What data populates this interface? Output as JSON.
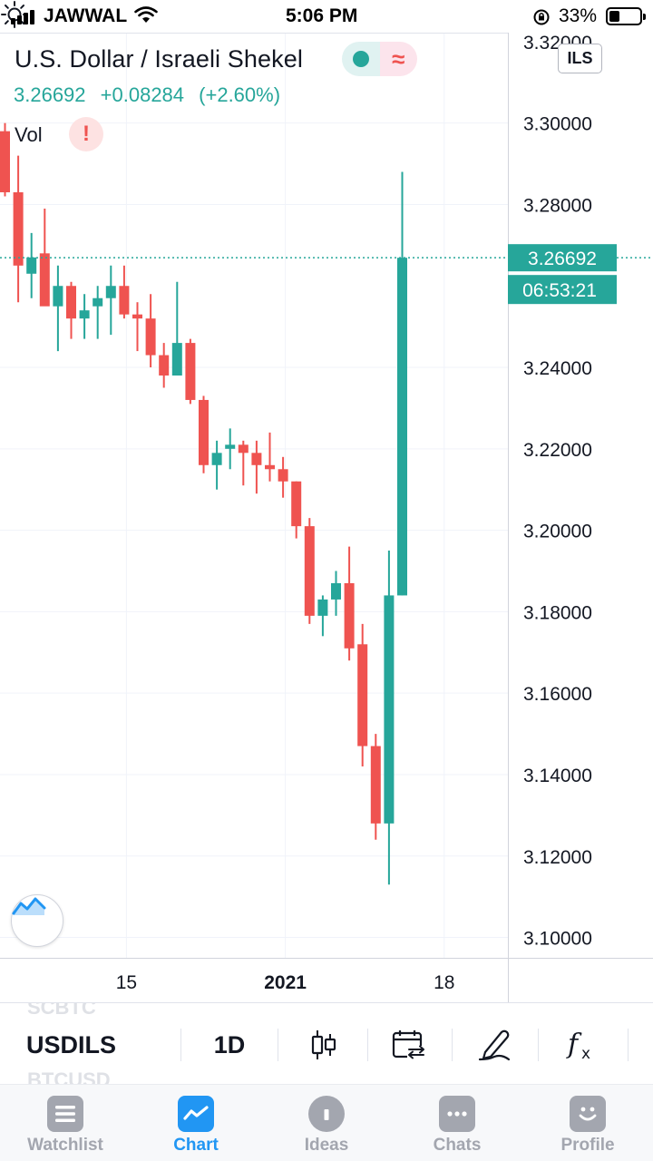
{
  "status_bar": {
    "carrier": "JAWWAL",
    "time": "5:06 PM",
    "battery": "33%",
    "signal_bars": 4,
    "battery_level": 0.33
  },
  "header": {
    "symbol_name": "U.S. Dollar / Israeli Shekel",
    "price": "3.26692",
    "change": "+0.08284",
    "change_percent": "(+2.60%)",
    "currency": "ILS",
    "vol_label": "Vol",
    "vol_warning": "!",
    "delayed_glyph": "≈"
  },
  "colors": {
    "up": "#26a69a",
    "down": "#ef5350",
    "accent": "#2196f3",
    "grid": "#f0f3fa",
    "axis_text": "#131722",
    "inactive": "#a3a6af"
  },
  "chart_data": {
    "type": "candlestick",
    "symbol": "USDILS",
    "interval": "1D",
    "ylim": [
      3.095,
      3.3222
    ],
    "y_ticks": [
      "3.30000",
      "3.28000",
      "3.24000",
      "3.22000",
      "3.20000",
      "3.18000",
      "3.16000",
      "3.14000",
      "3.12000",
      "3.10000"
    ],
    "y_ticks_values": [
      3.3,
      3.28,
      3.24,
      3.22,
      3.2,
      3.18,
      3.16,
      3.14,
      3.12,
      3.1
    ],
    "top_tick_partial": "3.32000",
    "x_ticks": [
      {
        "label": "15",
        "index": 9,
        "bold": false
      },
      {
        "label": "2021",
        "index": 21,
        "bold": true
      },
      {
        "label": "18",
        "index": 33,
        "bold": false
      }
    ],
    "last_price_label": "3.26692",
    "countdown_label": "06:53:21",
    "last_price": 3.26692,
    "candles": [
      {
        "o": 3.298,
        "h": 3.3,
        "l": 3.282,
        "c": 3.283
      },
      {
        "o": 3.283,
        "h": 3.292,
        "l": 3.256,
        "c": 3.265
      },
      {
        "o": 3.263,
        "h": 3.273,
        "l": 3.257,
        "c": 3.267
      },
      {
        "o": 3.268,
        "h": 3.279,
        "l": 3.256,
        "c": 3.255
      },
      {
        "o": 3.255,
        "h": 3.265,
        "l": 3.244,
        "c": 3.26
      },
      {
        "o": 3.26,
        "h": 3.261,
        "l": 3.247,
        "c": 3.252
      },
      {
        "o": 3.252,
        "h": 3.258,
        "l": 3.247,
        "c": 3.254
      },
      {
        "o": 3.255,
        "h": 3.26,
        "l": 3.247,
        "c": 3.257
      },
      {
        "o": 3.257,
        "h": 3.265,
        "l": 3.248,
        "c": 3.26
      },
      {
        "o": 3.26,
        "h": 3.265,
        "l": 3.252,
        "c": 3.253
      },
      {
        "o": 3.253,
        "h": 3.256,
        "l": 3.244,
        "c": 3.252
      },
      {
        "o": 3.252,
        "h": 3.258,
        "l": 3.24,
        "c": 3.243
      },
      {
        "o": 3.243,
        "h": 3.246,
        "l": 3.235,
        "c": 3.238
      },
      {
        "o": 3.238,
        "h": 3.261,
        "l": 3.238,
        "c": 3.246
      },
      {
        "o": 3.246,
        "h": 3.247,
        "l": 3.231,
        "c": 3.232
      },
      {
        "o": 3.232,
        "h": 3.233,
        "l": 3.214,
        "c": 3.216
      },
      {
        "o": 3.216,
        "h": 3.222,
        "l": 3.21,
        "c": 3.219
      },
      {
        "o": 3.22,
        "h": 3.225,
        "l": 3.215,
        "c": 3.221
      },
      {
        "o": 3.221,
        "h": 3.222,
        "l": 3.211,
        "c": 3.219
      },
      {
        "o": 3.219,
        "h": 3.222,
        "l": 3.209,
        "c": 3.216
      },
      {
        "o": 3.216,
        "h": 3.224,
        "l": 3.212,
        "c": 3.215
      },
      {
        "o": 3.215,
        "h": 3.218,
        "l": 3.208,
        "c": 3.212
      },
      {
        "o": 3.212,
        "h": 3.212,
        "l": 3.198,
        "c": 3.201
      },
      {
        "o": 3.201,
        "h": 3.203,
        "l": 3.177,
        "c": 3.179
      },
      {
        "o": 3.179,
        "h": 3.184,
        "l": 3.174,
        "c": 3.183
      },
      {
        "o": 3.183,
        "h": 3.19,
        "l": 3.179,
        "c": 3.187
      },
      {
        "o": 3.187,
        "h": 3.196,
        "l": 3.168,
        "c": 3.171
      },
      {
        "o": 3.172,
        "h": 3.177,
        "l": 3.142,
        "c": 3.147
      },
      {
        "o": 3.147,
        "h": 3.15,
        "l": 3.124,
        "c": 3.128
      },
      {
        "o": 3.128,
        "h": 3.195,
        "l": 3.113,
        "c": 3.184
      },
      {
        "o": 3.184,
        "h": 3.288,
        "l": 3.184,
        "c": 3.26692
      }
    ]
  },
  "toolbar": {
    "symbol": "USDILS",
    "interval": "1D",
    "ghost_above": "SCBTC",
    "ghost_below": "BTCUSD"
  },
  "tabs": [
    {
      "label": "Watchlist",
      "icon": "watchlist-icon",
      "active": false
    },
    {
      "label": "Chart",
      "icon": "chart-icon",
      "active": true
    },
    {
      "label": "Ideas",
      "icon": "ideas-icon",
      "active": false
    },
    {
      "label": "Chats",
      "icon": "chats-icon",
      "active": false
    },
    {
      "label": "Profile",
      "icon": "profile-icon",
      "active": false
    }
  ]
}
